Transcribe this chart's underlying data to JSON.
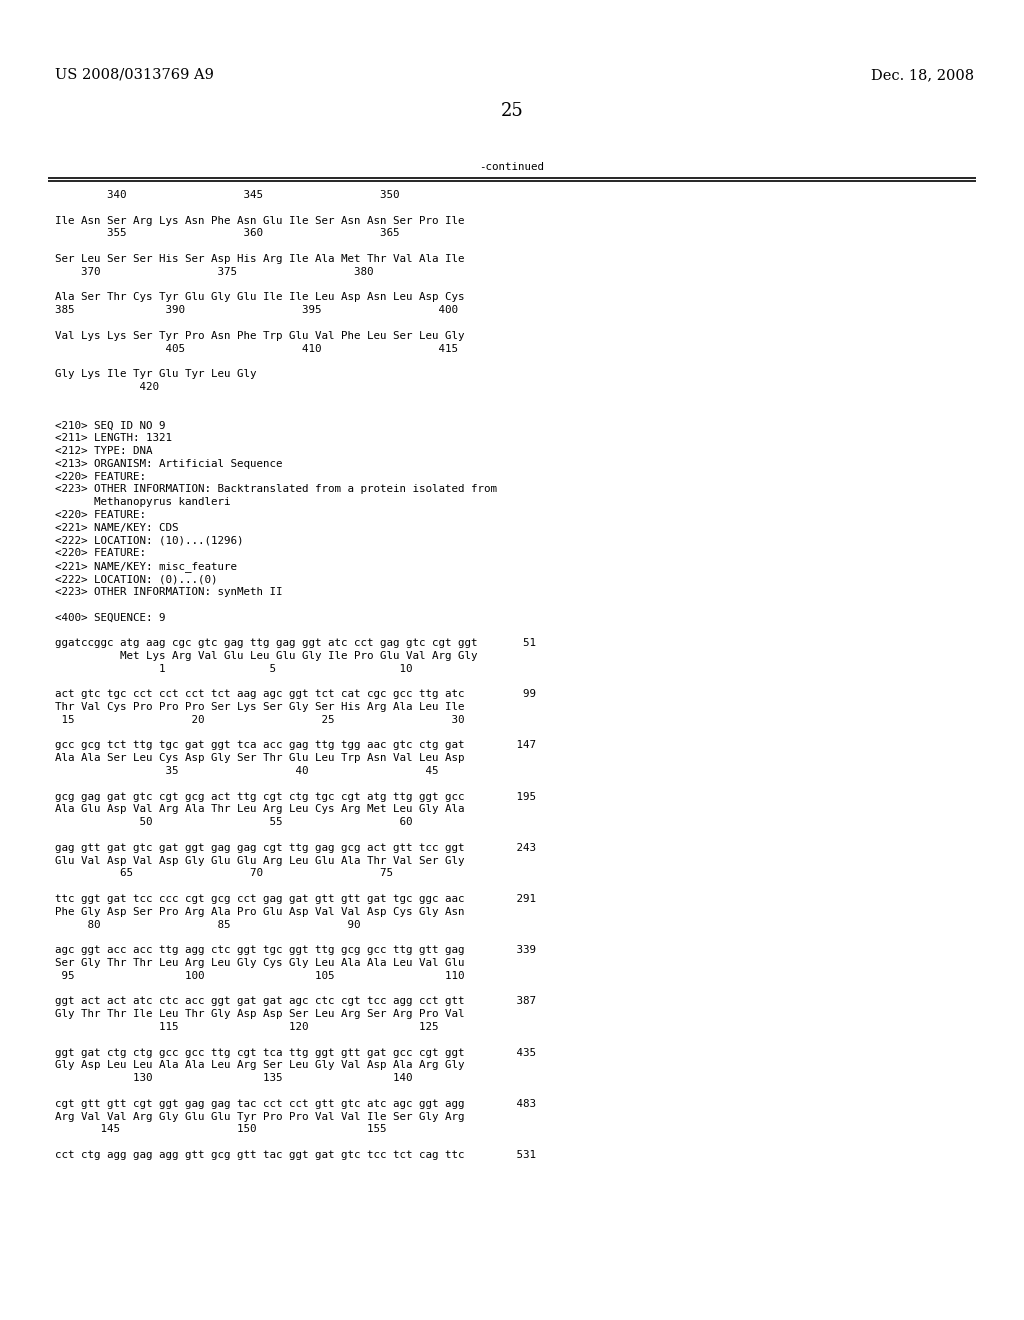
{
  "header_left": "US 2008/0313769 A9",
  "header_right": "Dec. 18, 2008",
  "page_number": "25",
  "continued_label": "-continued",
  "background_color": "#ffffff",
  "text_color": "#000000",
  "font_size_header": 10.5,
  "font_size_page": 13,
  "font_size_body": 7.8,
  "lines": [
    "        340                  345                  350",
    "",
    "Ile Asn Ser Arg Lys Asn Phe Asn Glu Ile Ser Asn Asn Ser Pro Ile",
    "        355                  360                  365",
    "",
    "Ser Leu Ser Ser His Ser Asp His Arg Ile Ala Met Thr Val Ala Ile",
    "    370                  375                  380",
    "",
    "Ala Ser Thr Cys Tyr Glu Gly Glu Ile Ile Leu Asp Asn Leu Asp Cys",
    "385              390                  395                  400",
    "",
    "Val Lys Lys Ser Tyr Pro Asn Phe Trp Glu Val Phe Leu Ser Leu Gly",
    "                 405                  410                  415",
    "",
    "Gly Lys Ile Tyr Glu Tyr Leu Gly",
    "             420",
    "",
    "",
    "<210> SEQ ID NO 9",
    "<211> LENGTH: 1321",
    "<212> TYPE: DNA",
    "<213> ORGANISM: Artificial Sequence",
    "<220> FEATURE:",
    "<223> OTHER INFORMATION: Backtranslated from a protein isolated from",
    "      Methanopyrus kandleri",
    "<220> FEATURE:",
    "<221> NAME/KEY: CDS",
    "<222> LOCATION: (10)...(1296)",
    "<220> FEATURE:",
    "<221> NAME/KEY: misc_feature",
    "<222> LOCATION: (0)...(0)",
    "<223> OTHER INFORMATION: synMeth II",
    "",
    "<400> SEQUENCE: 9",
    "",
    "ggatccggc atg aag cgc gtc gag ttg gag ggt atc cct gag gtc cgt ggt       51",
    "          Met Lys Arg Val Glu Leu Glu Gly Ile Pro Glu Val Arg Gly",
    "                1                5                   10",
    "",
    "act gtc tgc cct cct cct tct aag agc ggt tct cat cgc gcc ttg atc         99",
    "Thr Val Cys Pro Pro Pro Ser Lys Ser Gly Ser His Arg Ala Leu Ile",
    " 15                  20                  25                  30",
    "",
    "gcc gcg tct ttg tgc gat ggt tca acc gag ttg tgg aac gtc ctg gat        147",
    "Ala Ala Ser Leu Cys Asp Gly Ser Thr Glu Leu Trp Asn Val Leu Asp",
    "                 35                  40                  45",
    "",
    "gcg gag gat gtc cgt gcg act ttg cgt ctg tgc cgt atg ttg ggt gcc        195",
    "Ala Glu Asp Val Arg Ala Thr Leu Arg Leu Cys Arg Met Leu Gly Ala",
    "             50                  55                  60",
    "",
    "gag gtt gat gtc gat ggt gag gag cgt ttg gag gcg act gtt tcc ggt        243",
    "Glu Val Asp Val Asp Gly Glu Glu Arg Leu Glu Ala Thr Val Ser Gly",
    "          65                  70                  75",
    "",
    "ttc ggt gat tcc ccc cgt gcg cct gag gat gtt gtt gat tgc ggc aac        291",
    "Phe Gly Asp Ser Pro Arg Ala Pro Glu Asp Val Val Asp Cys Gly Asn",
    "     80                  85                  90",
    "",
    "agc ggt acc acc ttg agg ctc ggt tgc ggt ttg gcg gcc ttg gtt gag        339",
    "Ser Gly Thr Thr Leu Arg Leu Gly Cys Gly Leu Ala Ala Leu Val Glu",
    " 95                 100                 105                 110",
    "",
    "ggt act act atc ctc acc ggt gat gat agc ctc cgt tcc agg cct gtt        387",
    "Gly Thr Thr Ile Leu Thr Gly Asp Asp Ser Leu Arg Ser Arg Pro Val",
    "                115                 120                 125",
    "",
    "ggt gat ctg ctg gcc gcc ttg cgt tca ttg ggt gtt gat gcc cgt ggt        435",
    "Gly Asp Leu Leu Ala Ala Leu Arg Ser Leu Gly Val Asp Ala Arg Gly",
    "            130                 135                 140",
    "",
    "cgt gtt gtt cgt ggt gag gag tac cct cct gtt gtc atc agc ggt agg        483",
    "Arg Val Val Arg Gly Glu Glu Tyr Pro Pro Val Val Ile Ser Gly Arg",
    "       145                  150                 155",
    "",
    "cct ctg agg gag agg gtt gcg gtt tac ggt gat gtc tcc tct cag ttc        531"
  ]
}
